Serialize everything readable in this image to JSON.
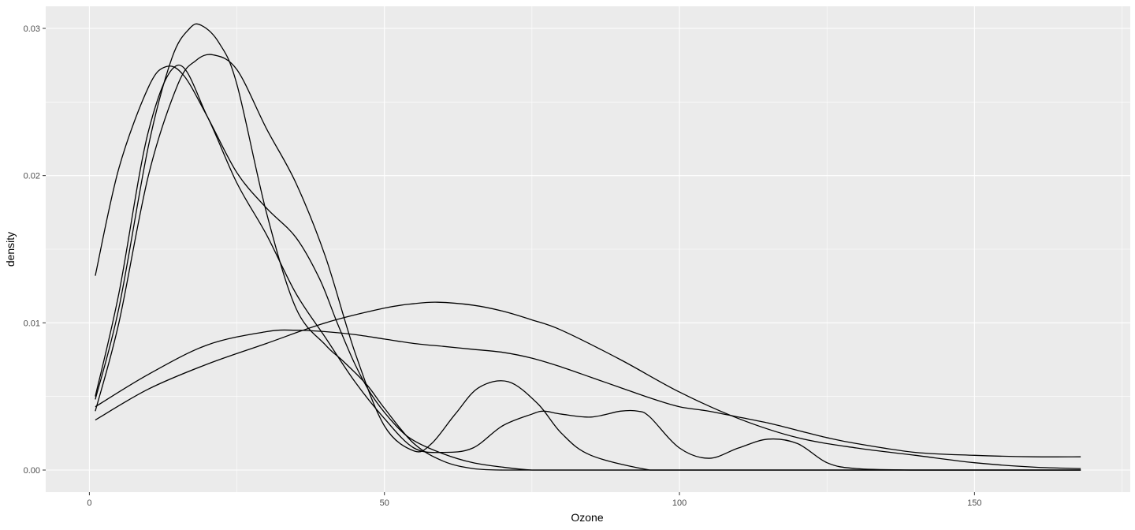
{
  "chart_data": {
    "type": "line",
    "title": "",
    "xlabel": "Ozone",
    "ylabel": "density",
    "xlim": [
      -7.4,
      176.4
    ],
    "ylim": [
      -0.0015,
      0.0315
    ],
    "x_ticks": [
      0,
      50,
      100,
      150
    ],
    "x_tick_labels": [
      "0",
      "50",
      "100",
      "150"
    ],
    "y_ticks": [
      0,
      0.01,
      0.02,
      0.03
    ],
    "y_tick_labels": [
      "0.00",
      "0.01",
      "0.02",
      "0.03"
    ],
    "grid": true,
    "legend": "none",
    "colors": {
      "panel": "#ebebeb",
      "grid": "#ffffff",
      "line": "#000000",
      "tick": "#4d4d4d"
    },
    "series": [
      {
        "x": [
          1,
          5,
          10,
          13,
          16,
          20,
          25,
          30,
          35,
          39,
          42,
          45,
          48,
          52,
          55,
          60,
          65,
          70,
          75,
          80,
          90,
          100,
          110,
          120,
          130,
          140,
          150,
          160,
          168
        ],
        "y": [
          0.0132,
          0.0205,
          0.026,
          0.0274,
          0.0268,
          0.024,
          0.0202,
          0.0178,
          0.0158,
          0.013,
          0.01,
          0.0072,
          0.005,
          0.003,
          0.002,
          0.0011,
          0.0005,
          0.0002,
          0.0,
          0.0,
          0.0,
          0.0,
          0.0,
          0.0,
          0.0,
          0.0,
          0.0,
          0.0,
          0.0
        ]
      },
      {
        "x": [
          1,
          5,
          10,
          14,
          17,
          19,
          22,
          25,
          30,
          35,
          40,
          43,
          47,
          50,
          55,
          60,
          65,
          70,
          75,
          80,
          90,
          100,
          110,
          120,
          130,
          140,
          150,
          160,
          168
        ],
        "y": [
          0.0048,
          0.011,
          0.022,
          0.028,
          0.03,
          0.0302,
          0.029,
          0.0262,
          0.0175,
          0.011,
          0.0085,
          0.0074,
          0.0058,
          0.0042,
          0.0018,
          0.0006,
          0.0001,
          0.0,
          0.0,
          0.0,
          0.0,
          0.0,
          0.0,
          0.0,
          0.0,
          0.0,
          0.0,
          0.0,
          0.0
        ]
      },
      {
        "x": [
          1,
          5,
          10,
          15,
          18,
          21,
          25,
          30,
          35,
          40,
          45,
          50,
          55,
          58,
          62,
          66,
          71,
          76,
          80,
          85,
          95,
          100,
          110,
          120,
          130,
          140,
          150,
          160,
          168
        ],
        "y": [
          0.004,
          0.01,
          0.02,
          0.0262,
          0.0278,
          0.0282,
          0.0272,
          0.0232,
          0.0195,
          0.0145,
          0.008,
          0.003,
          0.0013,
          0.0018,
          0.0038,
          0.0056,
          0.006,
          0.0045,
          0.0025,
          0.001,
          0.0,
          0.0,
          0.0,
          0.0,
          0.0,
          0.0,
          0.0,
          0.0,
          0.0
        ]
      },
      {
        "x": [
          1,
          10,
          20,
          30,
          35,
          40,
          45,
          50,
          55,
          60,
          65,
          70,
          75,
          80,
          85,
          90,
          95,
          100,
          105,
          110,
          115,
          120,
          125,
          130,
          140,
          150,
          160,
          168
        ],
        "y": [
          0.0043,
          0.0065,
          0.0085,
          0.0094,
          0.0095,
          0.0094,
          0.0092,
          0.0089,
          0.0086,
          0.0084,
          0.0082,
          0.008,
          0.0076,
          0.007,
          0.0063,
          0.0056,
          0.0049,
          0.0043,
          0.004,
          0.0036,
          0.0032,
          0.0027,
          0.0022,
          0.0018,
          0.0012,
          0.001,
          0.0009,
          0.0009
        ]
      },
      {
        "x": [
          1,
          10,
          20,
          30,
          40,
          50,
          55,
          59,
          65,
          70,
          75,
          80,
          90,
          100,
          110,
          120,
          130,
          140,
          150,
          160,
          168
        ],
        "y": [
          0.0034,
          0.0055,
          0.0072,
          0.0086,
          0.01,
          0.011,
          0.0113,
          0.0114,
          0.0112,
          0.0108,
          0.0102,
          0.0095,
          0.0075,
          0.0053,
          0.0035,
          0.0022,
          0.0015,
          0.001,
          0.0005,
          0.0002,
          0.0001
        ]
      },
      {
        "x": [
          1,
          5,
          10,
          15,
          20,
          25,
          30,
          35,
          40,
          45,
          50,
          55,
          60,
          65,
          70,
          75,
          77,
          80,
          85,
          90,
          93,
          95,
          100,
          105,
          110,
          115,
          120,
          125,
          130,
          140,
          150,
          160,
          168
        ],
        "y": [
          0.005,
          0.012,
          0.023,
          0.0275,
          0.024,
          0.0195,
          0.016,
          0.012,
          0.009,
          0.006,
          0.0035,
          0.0015,
          0.0012,
          0.0015,
          0.003,
          0.0038,
          0.004,
          0.0038,
          0.0036,
          0.004,
          0.004,
          0.0036,
          0.0015,
          0.0008,
          0.0015,
          0.0021,
          0.0018,
          0.0005,
          0.0001,
          0.0,
          0.0,
          0.0,
          0.0
        ]
      }
    ]
  }
}
